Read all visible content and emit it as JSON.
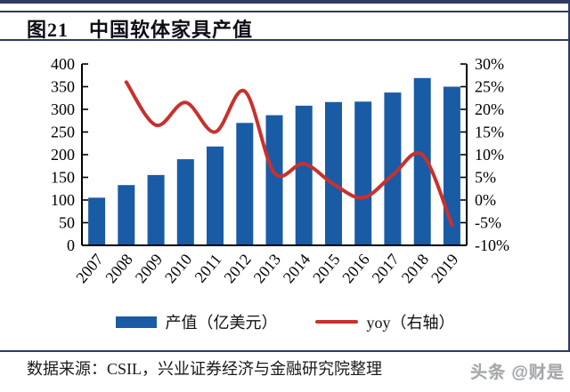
{
  "page": {
    "title": "图21　中国软体家具产值",
    "source": "数据来源：CSIL，兴业证券经济与金融研究院整理",
    "watermark": "头条 @财是"
  },
  "legend": {
    "bar_label": "产值（亿美元）",
    "line_label": "yoy（右轴）"
  },
  "colors": {
    "bar": "#1A5BA5",
    "line": "#C8312D",
    "axis": "#000000",
    "rule": "#2E3A66",
    "watermark_gray": "#A3A6A9"
  },
  "chart_data": {
    "type": "bar",
    "subtype": "bar-with-line-overlay",
    "title": "中国软体家具产值",
    "categories": [
      "2007",
      "2008",
      "2009",
      "2010",
      "2011",
      "2012",
      "2013",
      "2014",
      "2015",
      "2016",
      "2017",
      "2018",
      "2019"
    ],
    "series": [
      {
        "name": "产值（亿美元）",
        "type": "bar",
        "axis": "left",
        "values": [
          105,
          133,
          155,
          190,
          218,
          270,
          287,
          308,
          316,
          317,
          337,
          369,
          350
        ]
      },
      {
        "name": "yoy（右轴）",
        "type": "line",
        "axis": "right",
        "values": [
          null,
          26,
          16.5,
          21.5,
          15,
          24,
          6,
          8,
          3.5,
          0.5,
          5.5,
          10,
          -5.5
        ]
      }
    ],
    "left_axis": {
      "min": 0,
      "max": 400,
      "step": 50,
      "ticks": [
        0,
        50,
        100,
        150,
        200,
        250,
        300,
        350,
        400
      ],
      "label": ""
    },
    "right_axis": {
      "min": -10,
      "max": 30,
      "step": 5,
      "tick_labels": [
        "-10%",
        "-5%",
        "0%",
        "5%",
        "10%",
        "15%",
        "20%",
        "25%",
        "30%"
      ],
      "label": ""
    },
    "grid": false,
    "legend_position": "bottom",
    "x_tick_rotation": -50
  }
}
